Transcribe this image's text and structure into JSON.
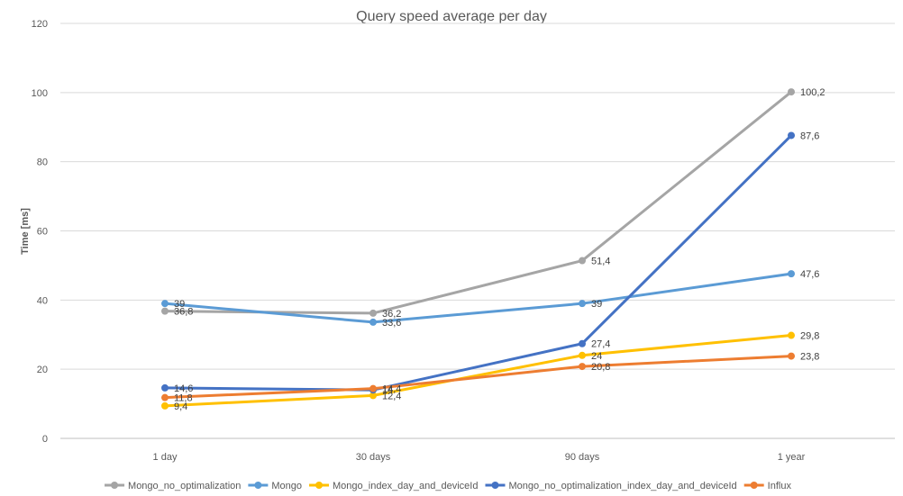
{
  "chart_data": {
    "type": "line",
    "title": "Query speed average per day",
    "xlabel": "",
    "ylabel": "Time [ms]",
    "categories": [
      "1 day",
      "30 days",
      "90 days",
      "1 year"
    ],
    "ylim": [
      0,
      120
    ],
    "yticks": [
      0,
      20,
      40,
      60,
      80,
      100,
      120
    ],
    "grid": true,
    "legend_position": "bottom",
    "series": [
      {
        "name": "Mongo_no_optimalization",
        "color": "#a5a5a5",
        "values": [
          36.8,
          36.2,
          51.4,
          100.2
        ],
        "labels": [
          "36,8",
          "36,2",
          "51,4",
          "100,2"
        ]
      },
      {
        "name": "Mongo",
        "color": "#5b9bd5",
        "values": [
          39,
          33.6,
          39,
          47.6
        ],
        "labels": [
          "39",
          "33,6",
          "39",
          "47,6"
        ]
      },
      {
        "name": "Mongo_index_day_and_deviceId",
        "color": "#ffc000",
        "values": [
          9.4,
          12.4,
          24,
          29.8
        ],
        "labels": [
          "9,4",
          "12,4",
          "24",
          "29,8"
        ]
      },
      {
        "name": "Mongo_no_optimalization_index_day_and_deviceId",
        "color": "#4472c4",
        "values": [
          14.6,
          14,
          27.4,
          87.6
        ],
        "labels": [
          "14,6",
          "14",
          "27,4",
          "87,6"
        ]
      },
      {
        "name": "Influx",
        "color": "#ed7d31",
        "values": [
          11.8,
          14.4,
          20.8,
          23.8
        ],
        "labels": [
          "11,8",
          "14,4",
          "20,8",
          "23,8"
        ]
      }
    ]
  }
}
